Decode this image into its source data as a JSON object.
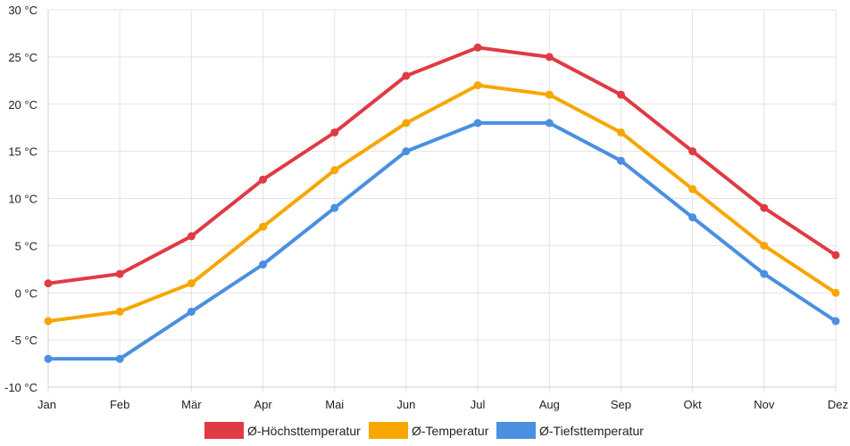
{
  "chart_data": {
    "type": "line",
    "title": "",
    "xlabel": "",
    "ylabel": "",
    "categories": [
      "Jan",
      "Feb",
      "Mär",
      "Apr",
      "Mai",
      "Jun",
      "Jul",
      "Aug",
      "Sep",
      "Okt",
      "Nov",
      "Dez"
    ],
    "ylim": [
      -10,
      30
    ],
    "y_ticks": [
      30,
      25,
      20,
      15,
      10,
      5,
      0,
      -5,
      -10
    ],
    "y_tick_labels": [
      "30 °C",
      "25 °C",
      "20 °C",
      "15 °C",
      "10 °C",
      "5 °C",
      "0 °C",
      "-5 °C",
      "-10 °C"
    ],
    "grid": true,
    "legend_position": "bottom",
    "series": [
      {
        "name": "Ø-Höchsttemperatur",
        "color": "#e03a44",
        "values": [
          1,
          2,
          6,
          12,
          17,
          23,
          26,
          25,
          21,
          15,
          9,
          4
        ]
      },
      {
        "name": "Ø-Temperatur",
        "color": "#f7a600",
        "values": [
          -3,
          -2,
          1,
          7,
          13,
          18,
          22,
          21,
          17,
          11,
          5,
          0
        ]
      },
      {
        "name": "Ø-Tiefsttemperatur",
        "color": "#4a8fe0",
        "values": [
          -7,
          -7,
          -2,
          3,
          9,
          15,
          18,
          18,
          14,
          8,
          2,
          -3
        ]
      }
    ]
  }
}
